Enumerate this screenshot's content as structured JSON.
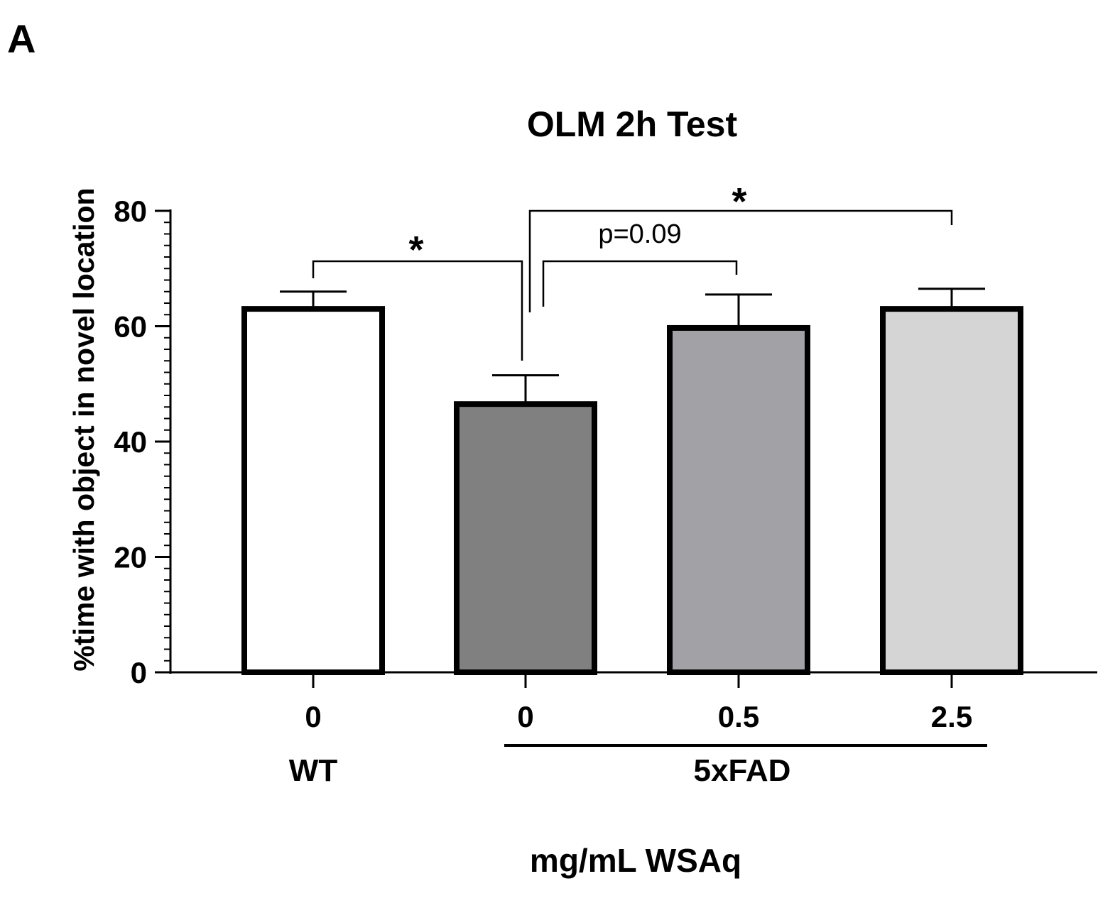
{
  "panel_label": "A",
  "chart_data": {
    "type": "bar",
    "title": "OLM 2h Test",
    "ylabel": "%time with object in novel location",
    "xlabel": "mg/mL WSAq",
    "ylim": [
      0,
      80
    ],
    "yticks": [
      0,
      20,
      40,
      60,
      80
    ],
    "minor_tick_step": 2,
    "categories": [
      "0",
      "0",
      "0.5",
      "2.5"
    ],
    "values": [
      63,
      46.5,
      59.7,
      63
    ],
    "errors": [
      3,
      5,
      5.8,
      3.5
    ],
    "colors": [
      "#ffffff",
      "#808080",
      "#a2a2a6",
      "#d5d5d5"
    ],
    "groups": [
      {
        "label": "WT",
        "categories": [
          0
        ]
      },
      {
        "label": "5xFAD",
        "categories": [
          1,
          2,
          3
        ]
      }
    ],
    "significance": [
      {
        "from": 0,
        "to": 1,
        "label": "*"
      },
      {
        "from": 1,
        "to": 2,
        "label": "p=0.09"
      },
      {
        "from": 1,
        "to": 3,
        "label": "*"
      }
    ]
  }
}
